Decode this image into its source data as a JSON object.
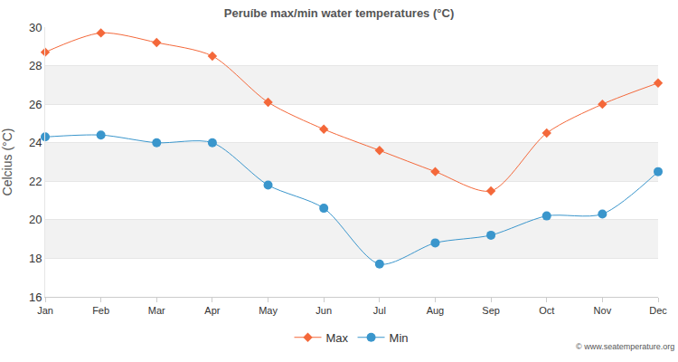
{
  "chart_data": {
    "type": "line",
    "title": "Peruíbe max/min water temperatures (°C)",
    "y_label": "Celcius (°C)",
    "categories": [
      "Jan",
      "Feb",
      "Mar",
      "Apr",
      "May",
      "Jun",
      "Jul",
      "Aug",
      "Sep",
      "Oct",
      "Nov",
      "Dec"
    ],
    "series": [
      {
        "name": "Max",
        "color": "#f4683a",
        "marker": "diamond",
        "values": [
          28.7,
          29.7,
          29.2,
          28.5,
          26.1,
          24.7,
          23.6,
          22.5,
          21.5,
          24.5,
          26.0,
          27.1
        ]
      },
      {
        "name": "Min",
        "color": "#3a96cc",
        "marker": "circle",
        "values": [
          24.3,
          24.4,
          24.0,
          24.0,
          21.8,
          20.6,
          17.7,
          18.8,
          19.2,
          20.2,
          20.3,
          22.5
        ]
      }
    ],
    "ylim": [
      16,
      30
    ],
    "yticks": [
      16,
      18,
      20,
      22,
      24,
      26,
      28,
      30
    ],
    "grid": true,
    "legend": "bottom",
    "annotations": [
      "© www.seatemperature.org"
    ]
  }
}
